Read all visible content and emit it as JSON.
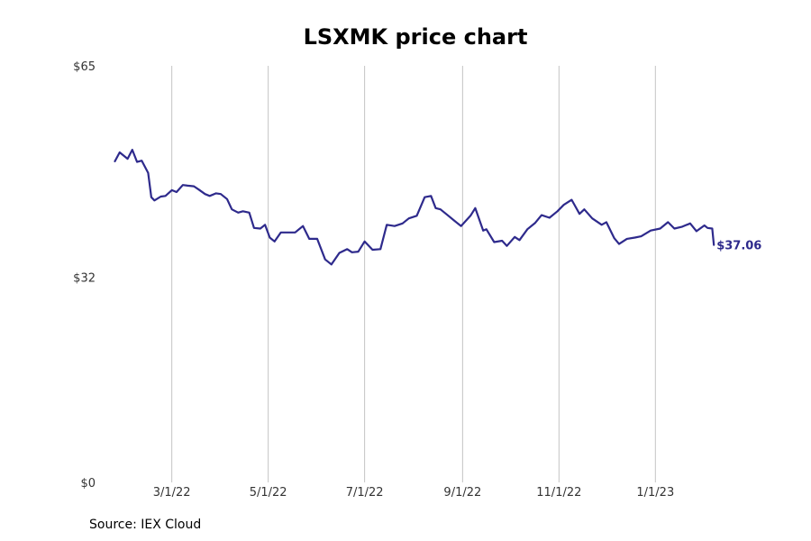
{
  "colors": {
    "line": "#2e2a8c",
    "grid": "#c4c4c4",
    "text": "#333333"
  },
  "source": "Source: IEX Cloud",
  "chart_data": {
    "type": "line",
    "title": "LSXMK price chart",
    "xlabel": "",
    "ylabel": "",
    "ylim": [
      0,
      65
    ],
    "y_ticks": [
      0,
      32,
      65
    ],
    "y_tick_labels": [
      "$0",
      "$32",
      "$65"
    ],
    "xlim": [
      "2022-01-18",
      "2023-02-20"
    ],
    "x_ticks": [
      "2022-03-01",
      "2022-05-01",
      "2022-07-01",
      "2022-09-01",
      "2022-11-01",
      "2023-01-01"
    ],
    "x_tick_labels": [
      "3/1/22",
      "5/1/22",
      "7/1/22",
      "9/1/22",
      "11/1/22",
      "1/1/23"
    ],
    "grid": "vertical",
    "last_label": "$37.06",
    "series": [
      {
        "x": [
          "2022-01-24",
          "2022-01-27",
          "2022-02-01",
          "2022-02-04",
          "2022-02-07",
          "2022-02-10",
          "2022-02-14",
          "2022-02-16",
          "2022-02-18",
          "2022-02-22",
          "2022-02-25",
          "2022-03-01",
          "2022-03-04",
          "2022-03-08",
          "2022-03-11",
          "2022-03-15",
          "2022-03-18",
          "2022-03-22",
          "2022-03-25",
          "2022-03-29",
          "2022-04-01",
          "2022-04-05",
          "2022-04-08",
          "2022-04-12",
          "2022-04-15",
          "2022-04-19",
          "2022-04-22",
          "2022-04-26",
          "2022-04-29",
          "2022-05-02",
          "2022-05-05",
          "2022-05-09",
          "2022-05-13",
          "2022-05-18",
          "2022-05-23",
          "2022-05-27",
          "2022-06-01",
          "2022-06-06",
          "2022-06-10",
          "2022-06-15",
          "2022-06-20",
          "2022-06-23",
          "2022-06-27",
          "2022-07-01",
          "2022-07-06",
          "2022-07-11",
          "2022-07-15",
          "2022-07-20",
          "2022-07-25",
          "2022-07-29",
          "2022-08-03",
          "2022-08-08",
          "2022-08-12",
          "2022-08-15",
          "2022-08-18",
          "2022-08-23",
          "2022-08-26",
          "2022-08-31",
          "2022-09-06",
          "2022-09-09",
          "2022-09-14",
          "2022-09-16",
          "2022-09-21",
          "2022-09-26",
          "2022-09-29",
          "2022-10-04",
          "2022-10-07",
          "2022-10-12",
          "2022-10-17",
          "2022-10-21",
          "2022-10-26",
          "2022-10-31",
          "2022-11-04",
          "2022-11-09",
          "2022-11-14",
          "2022-11-17",
          "2022-11-22",
          "2022-11-28",
          "2022-12-01",
          "2022-12-06",
          "2022-12-09",
          "2022-12-14",
          "2022-12-19",
          "2022-12-23",
          "2022-12-29",
          "2023-01-04",
          "2023-01-09",
          "2023-01-13",
          "2023-01-18",
          "2023-01-23",
          "2023-01-27",
          "2023-02-01",
          "2023-02-03",
          "2023-02-06",
          "2023-02-07"
        ],
        "values": [
          50.1,
          51.5,
          50.5,
          51.9,
          50.0,
          50.2,
          48.3,
          44.5,
          44.0,
          44.6,
          44.7,
          45.6,
          45.3,
          46.4,
          46.3,
          46.2,
          45.7,
          45.0,
          44.7,
          45.1,
          45.0,
          44.2,
          42.6,
          42.1,
          42.3,
          42.1,
          39.7,
          39.6,
          40.2,
          38.2,
          37.6,
          39.0,
          39.0,
          39.0,
          40.0,
          38.0,
          38.0,
          34.8,
          34.0,
          35.8,
          36.4,
          35.9,
          36.0,
          37.6,
          36.3,
          36.4,
          40.2,
          40.0,
          40.4,
          41.2,
          41.6,
          44.5,
          44.7,
          42.8,
          42.6,
          41.6,
          41.0,
          40.0,
          41.6,
          42.8,
          39.3,
          39.5,
          37.5,
          37.7,
          36.9,
          38.3,
          37.8,
          39.5,
          40.5,
          41.7,
          41.3,
          42.3,
          43.3,
          44.1,
          41.9,
          42.6,
          41.2,
          40.2,
          40.6,
          38.1,
          37.2,
          38.0,
          38.2,
          38.4,
          39.3,
          39.6,
          40.6,
          39.6,
          39.9,
          40.4,
          39.2,
          40.1,
          39.7,
          39.6,
          37.06
        ]
      }
    ]
  }
}
